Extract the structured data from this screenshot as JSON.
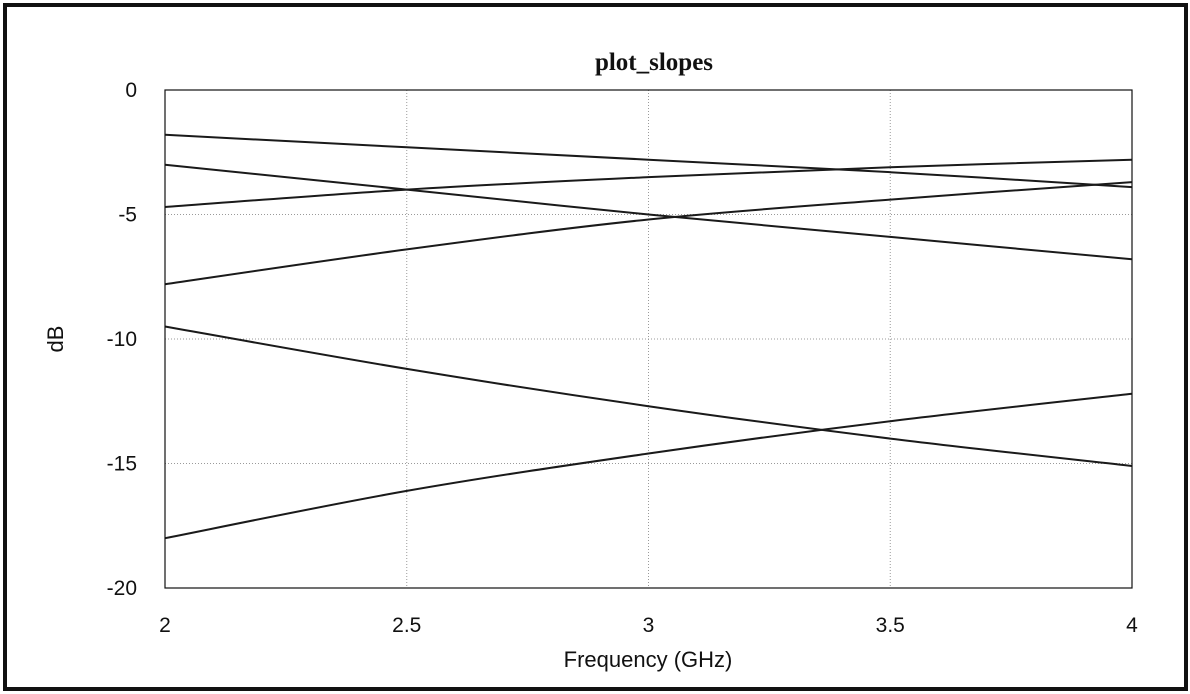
{
  "chart_data": {
    "type": "line",
    "title": "plot_slopes",
    "xlabel": "Frequency (GHz)",
    "ylabel": "dB",
    "xlim": [
      2,
      4
    ],
    "ylim": [
      -20,
      0
    ],
    "grid": true,
    "xticks": [
      "2",
      "2.5",
      "3",
      "3.5",
      "4"
    ],
    "yticks": [
      "0",
      "-5",
      "-10",
      "-15",
      "-20"
    ],
    "x": [
      2,
      2.5,
      3,
      3.5,
      4
    ],
    "series": [
      {
        "values": [
          -1.8,
          -2.3,
          -2.8,
          -3.3,
          -3.9
        ]
      },
      {
        "values": [
          -3.0,
          -4.0,
          -5.0,
          -5.9,
          -6.8
        ]
      },
      {
        "values": [
          -4.7,
          -4.0,
          -3.5,
          -3.1,
          -2.8
        ]
      },
      {
        "values": [
          -7.8,
          -6.4,
          -5.2,
          -4.4,
          -3.7
        ]
      },
      {
        "values": [
          -9.5,
          -11.2,
          -12.7,
          -14.0,
          -15.1
        ]
      },
      {
        "values": [
          -18.0,
          -16.1,
          -14.6,
          -13.3,
          -12.2
        ]
      }
    ]
  }
}
